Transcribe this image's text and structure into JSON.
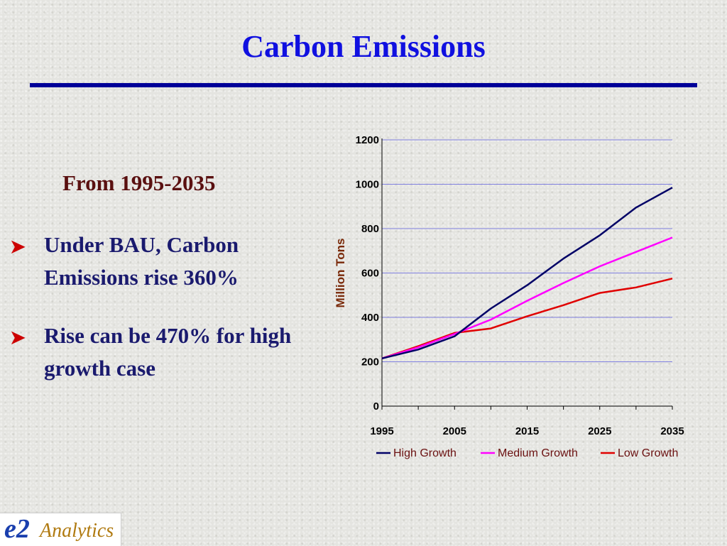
{
  "slide": {
    "title": "Carbon Emissions",
    "subheading": "From 1995-2035",
    "bullets": [
      {
        "text": "Under BAU, Carbon Emissions rise 360%"
      },
      {
        "text": "Rise can be 470% for high growth case"
      }
    ],
    "logo": {
      "mark": "e2",
      "text": "Analytics"
    }
  },
  "chart_data": {
    "type": "line",
    "ylabel": "Million Tons",
    "xlabel": "",
    "ylim": [
      0,
      1200
    ],
    "yticks": [
      0,
      200,
      400,
      600,
      800,
      1000,
      1200
    ],
    "x": [
      1995,
      2000,
      2005,
      2010,
      2015,
      2020,
      2025,
      2030,
      2035
    ],
    "xtick_labels": [
      "1995",
      "2005",
      "2015",
      "2025",
      "2035"
    ],
    "grid": true,
    "legend_position": "bottom",
    "series": [
      {
        "name": "High Growth",
        "color": "#000066",
        "values": [
          215,
          255,
          315,
          440,
          545,
          665,
          770,
          895,
          985
        ]
      },
      {
        "name": "Medium Growth",
        "color": "#ff00ff",
        "values": [
          215,
          265,
          325,
          390,
          475,
          555,
          630,
          695,
          760
        ]
      },
      {
        "name": "Low Growth",
        "color": "#e00000",
        "values": [
          215,
          270,
          330,
          350,
          405,
          455,
          510,
          535,
          575
        ]
      }
    ]
  }
}
